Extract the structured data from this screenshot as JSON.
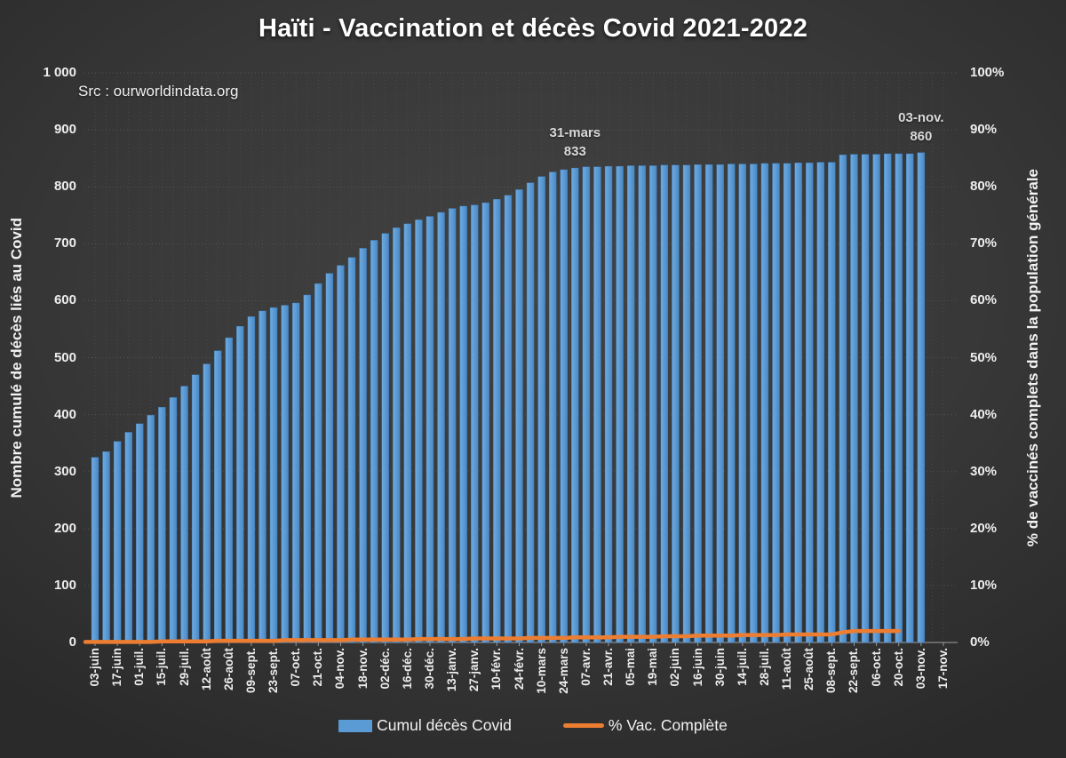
{
  "title": "Haïti - Vaccination et décès Covid 2021-2022",
  "source": "Src : ourworldindata.org",
  "colors": {
    "bar": "#5B9BD5",
    "bar_edge": "#3F7CB8",
    "line": "#ED7D31",
    "grid": "#4d4d4d",
    "axis_line": "#8a8a8a",
    "text": "#f2f2f2"
  },
  "chart_data": {
    "type": "bar+line",
    "title": "Haïti - Vaccination et décès Covid 2021-2022",
    "x_is_weekly": true,
    "x_tick_labels": [
      "03-juin",
      "17-juin",
      "01-juil.",
      "15-juil.",
      "29-juil.",
      "12-août",
      "26-août",
      "09-sept.",
      "23-sept.",
      "07-oct.",
      "21-oct.",
      "04-nov.",
      "18-nov.",
      "02-déc.",
      "16-déc.",
      "30-déc.",
      "13-janv.",
      "27-janv.",
      "10-févr.",
      "24-févr.",
      "10-mars",
      "24-mars",
      "07-avr.",
      "21-avr.",
      "05-mai",
      "19-mai",
      "02-juin",
      "16-juin",
      "30-juin",
      "14-juil.",
      "28-juil.",
      "11-août",
      "25-août",
      "08-sept.",
      "22-sept.",
      "06-oct.",
      "20-oct.",
      "03-nov.",
      "17-nov."
    ],
    "series": [
      {
        "name": "Cumul décès Covid",
        "type": "bar",
        "axis": "left",
        "color": "#5B9BD5",
        "values": [
          325,
          335,
          353,
          369,
          384,
          399,
          413,
          430,
          450,
          470,
          489,
          512,
          535,
          555,
          572,
          582,
          588,
          592,
          596,
          610,
          630,
          648,
          662,
          676,
          692,
          706,
          718,
          728,
          735,
          742,
          748,
          755,
          762,
          766,
          768,
          772,
          778,
          785,
          795,
          807,
          818,
          826,
          830,
          833,
          835,
          835,
          836,
          836,
          837,
          837,
          837,
          838,
          838,
          838,
          839,
          839,
          839,
          840,
          840,
          840,
          841,
          841,
          841,
          842,
          842,
          843,
          843,
          856,
          857,
          857,
          857,
          858,
          858,
          858,
          860
        ]
      },
      {
        "name": "% Vac. Complète",
        "type": "line",
        "axis": "right",
        "color": "#ED7D31",
        "values": [
          0.1,
          0.1,
          0.1,
          0.1,
          0.1,
          0.1,
          0.2,
          0.2,
          0.2,
          0.2,
          0.2,
          0.3,
          0.3,
          0.3,
          0.3,
          0.3,
          0.3,
          0.4,
          0.4,
          0.4,
          0.4,
          0.4,
          0.4,
          0.5,
          0.5,
          0.5,
          0.5,
          0.5,
          0.5,
          0.6,
          0.6,
          0.6,
          0.6,
          0.6,
          0.7,
          0.7,
          0.7,
          0.7,
          0.7,
          0.8,
          0.8,
          0.8,
          0.8,
          0.9,
          0.9,
          0.9,
          0.9,
          1.0,
          1.0,
          1.0,
          1.0,
          1.1,
          1.1,
          1.1,
          1.2,
          1.2,
          1.2,
          1.2,
          1.3,
          1.3,
          1.3,
          1.3,
          1.4,
          1.4,
          1.4,
          1.4,
          1.4,
          1.8,
          2.0,
          2.0,
          2.0,
          2.0,
          2.0,
          null,
          null
        ]
      }
    ],
    "y_left": {
      "title": "Nombre cumulé de décès liés au Covid",
      "min": 0,
      "max": 1000,
      "step": 100,
      "tick_labels": [
        "1 000",
        "900",
        "800",
        "700",
        "600",
        "500",
        "400",
        "300",
        "200",
        "100",
        "0"
      ]
    },
    "y_right": {
      "title": "% de vaccinés complets dans  la population générale",
      "min": 0,
      "max": 100,
      "step": 10,
      "tick_labels": [
        "100%",
        "90%",
        "80%",
        "70%",
        "60%",
        "50%",
        "40%",
        "30%",
        "20%",
        "10%",
        "0%"
      ]
    },
    "annotations": [
      {
        "week": 43,
        "label": "31-mars",
        "value": "833"
      },
      {
        "week": 74,
        "label": "03-nov.",
        "value": "860"
      }
    ],
    "grid": true,
    "legend_position": "bottom"
  }
}
